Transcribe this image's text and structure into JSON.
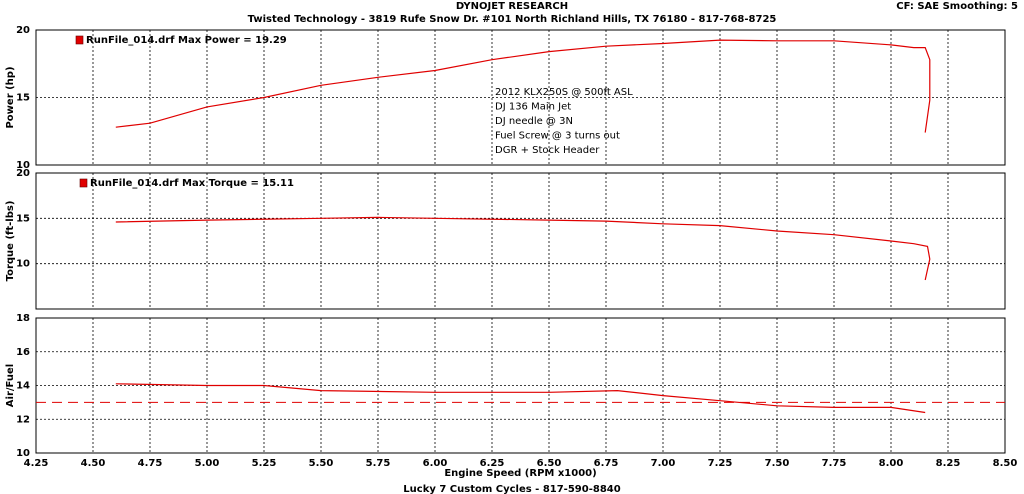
{
  "header": {
    "title": "DYNOJET RESEARCH",
    "address": "Twisted Technology - 3819 Rufe Snow Dr. #101 North Richland Hills, TX 76180 - 817-768-8725",
    "settings": "CF: SAE  Smoothing: 5"
  },
  "footer": "Lucky 7 Custom Cycles - 817-590-8840",
  "chart_data": [
    {
      "type": "line",
      "ylabel": "Power (hp)",
      "xlim": [
        4.25,
        8.5
      ],
      "ylim": [
        10,
        20
      ],
      "yticks": [
        10,
        15,
        20
      ],
      "grid": true,
      "x": [
        4.6,
        4.75,
        5.0,
        5.25,
        5.5,
        5.75,
        6.0,
        6.25,
        6.5,
        6.75,
        7.0,
        7.25,
        7.5,
        7.75,
        8.0,
        8.1,
        8.15,
        8.17,
        8.17,
        8.15
      ],
      "series": [
        {
          "name": "RunFile_014.drf Max Power = 19.29",
          "color": "#e00000",
          "values": [
            12.8,
            13.1,
            14.3,
            15.0,
            15.9,
            16.5,
            17.0,
            17.8,
            18.4,
            18.8,
            19.0,
            19.25,
            19.2,
            19.2,
            18.9,
            18.7,
            18.7,
            17.8,
            14.8,
            12.4
          ]
        }
      ],
      "annotations": [
        "2012 KLX250S @ 500ft ASL",
        "DJ 136 Main Jet",
        "DJ needle @ 3N",
        "Fuel Screw @ 3 turns out",
        "DGR + Stock Header"
      ]
    },
    {
      "type": "line",
      "ylabel": "Torque (ft-lbs)",
      "xlim": [
        4.25,
        8.5
      ],
      "ylim": [
        5,
        20
      ],
      "yticks": [
        10,
        15,
        20
      ],
      "grid": true,
      "x": [
        4.6,
        5.0,
        5.5,
        5.75,
        6.0,
        6.5,
        6.75,
        7.0,
        7.25,
        7.5,
        7.75,
        8.0,
        8.1,
        8.16,
        8.17,
        8.15
      ],
      "series": [
        {
          "name": "RunFile_014.drf Max Torque = 15.11",
          "color": "#e00000",
          "values": [
            14.6,
            14.8,
            15.0,
            15.1,
            15.0,
            14.8,
            14.7,
            14.4,
            14.2,
            13.6,
            13.2,
            12.5,
            12.2,
            11.9,
            10.5,
            8.2
          ]
        }
      ]
    },
    {
      "type": "line",
      "ylabel": "Air/Fuel",
      "xlabel": "Engine Speed (RPM x1000)",
      "xlim": [
        4.25,
        8.5
      ],
      "ylim": [
        10,
        18
      ],
      "yticks": [
        10,
        12,
        14,
        16,
        18
      ],
      "grid": true,
      "xticks": [
        4.25,
        {
          "value": 4.5,
          "label": "4.50"
        },
        4.75,
        {
          "value": 5,
          "label": "5.00"
        },
        5.25,
        {
          "value": 5.5,
          "label": "5.50"
        },
        5.75,
        {
          "value": 6,
          "label": "6.00"
        },
        6.25,
        {
          "value": 6.5,
          "label": "6.50"
        },
        6.75,
        {
          "value": 7,
          "label": "7.00"
        },
        7.25,
        {
          "value": 7.5,
          "label": "7.50"
        },
        7.75,
        {
          "value": 8,
          "label": "8.00"
        },
        8.25,
        {
          "value": 8.5,
          "label": "8.50"
        }
      ],
      "x": [
        4.6,
        5.0,
        5.25,
        5.5,
        6.0,
        6.5,
        6.8,
        7.0,
        7.25,
        7.5,
        7.75,
        8.0,
        8.15
      ],
      "series": [
        {
          "color": "#e00000",
          "values": [
            14.1,
            14.0,
            14.0,
            13.7,
            13.6,
            13.6,
            13.7,
            13.4,
            13.1,
            12.8,
            12.7,
            12.7,
            12.4
          ]
        }
      ],
      "reference_line": {
        "value": 13,
        "color": "#e00000"
      }
    }
  ]
}
